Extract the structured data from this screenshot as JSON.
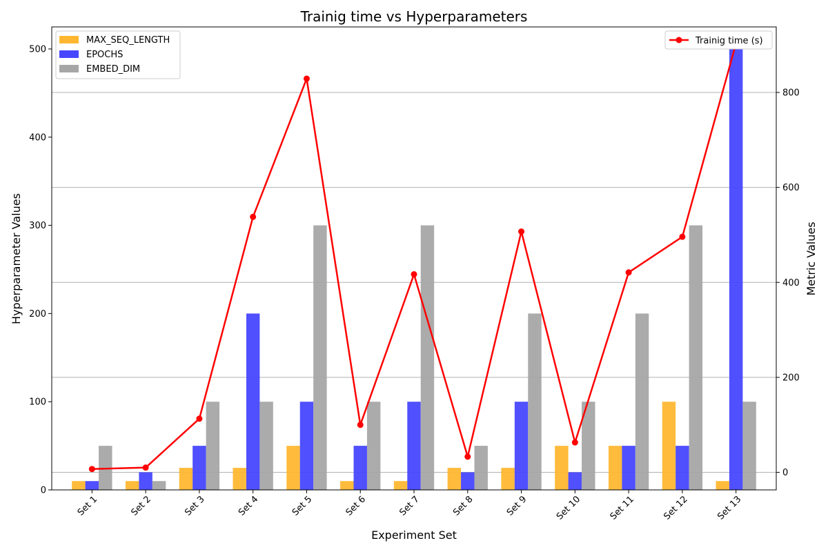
{
  "chart_data": {
    "type": "bar",
    "title": "Trainig time vs Hyperparameters",
    "xlabel": "Experiment Set",
    "ylabel": "Hyperparameter Values",
    "y2label": "Metric Values",
    "categories": [
      "Set 1",
      "Set 2",
      "Set 3",
      "Set 4",
      "Set 5",
      "Set 6",
      "Set 7",
      "Set 8",
      "Set 9",
      "Set 10",
      "Set 11",
      "Set 12",
      "Set 13"
    ],
    "ylim": [
      0,
      525
    ],
    "yticks": [
      0,
      100,
      200,
      300,
      400,
      500
    ],
    "y2lim": [
      -37,
      938
    ],
    "y2ticks": [
      0,
      200,
      400,
      600,
      800
    ],
    "grid": "right-axis horizontal",
    "series": [
      {
        "name": "MAX_SEQ_LENGTH",
        "color": "#ffb732",
        "values": [
          10,
          10,
          25,
          25,
          50,
          10,
          10,
          25,
          25,
          50,
          50,
          100,
          10
        ]
      },
      {
        "name": "EPOCHS",
        "color": "#4747ff",
        "values": [
          10,
          20,
          50,
          200,
          100,
          50,
          100,
          20,
          100,
          20,
          50,
          50,
          500
        ]
      },
      {
        "name": "EMBED_DIM",
        "color": "#a6a6a6",
        "values": [
          50,
          10,
          100,
          100,
          300,
          100,
          300,
          50,
          200,
          100,
          200,
          300,
          100
        ]
      }
    ],
    "line_series": {
      "name": "Trainig time (s)",
      "color": "#ff0000",
      "axis": "right",
      "values": [
        7,
        10,
        113,
        538,
        829,
        100,
        417,
        33,
        507,
        63,
        421,
        496,
        903
      ]
    },
    "legend_left": "upper-left",
    "legend_right": "upper-right"
  }
}
